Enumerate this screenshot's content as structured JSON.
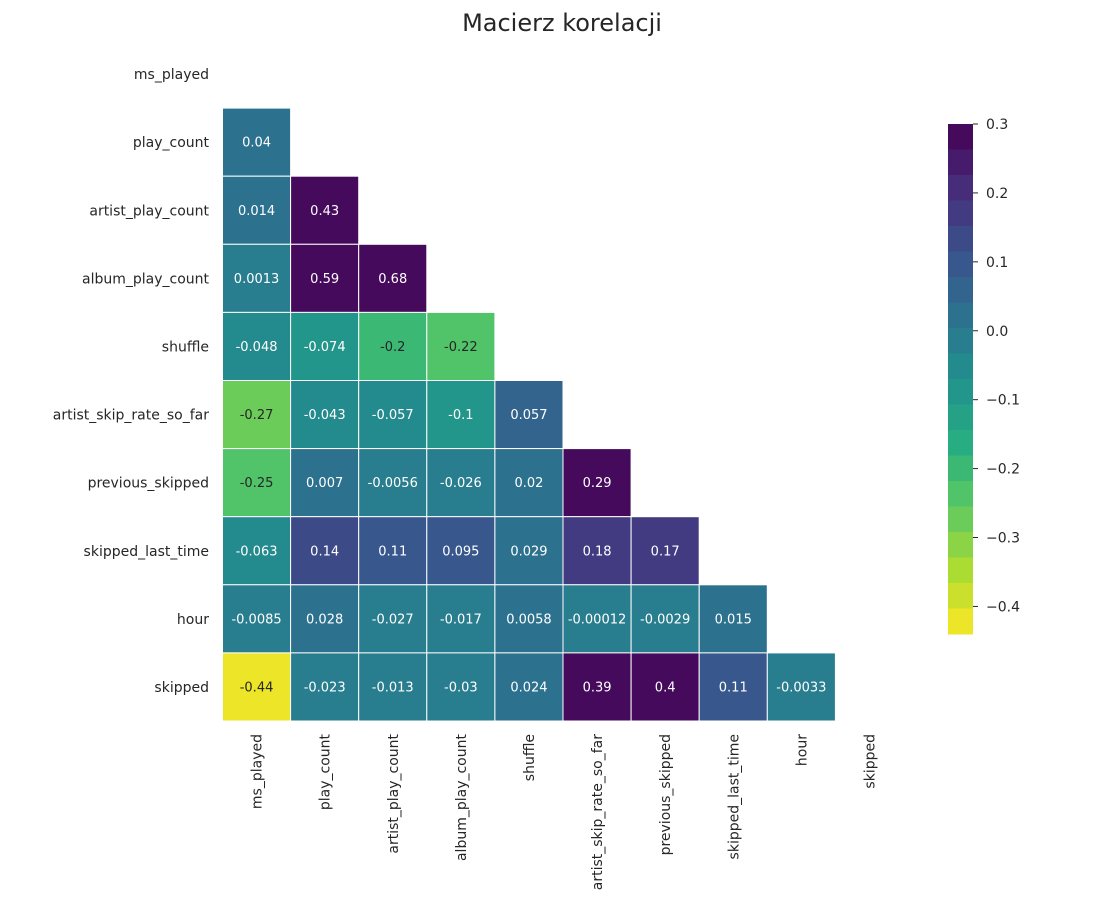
{
  "chart_data": {
    "type": "heatmap",
    "title": "Macierz korelacji",
    "xlabel": "",
    "ylabel": "",
    "mask": "upper-triangle-including-diagonal",
    "grid": false,
    "legend": "right",
    "colormap": "viridis_r (20 discrete steps)",
    "row_labels": [
      "ms_played",
      "play_count",
      "artist_play_count",
      "album_play_count",
      "shuffle",
      "artist_skip_rate_so_far",
      "previous_skipped",
      "skipped_last_time",
      "hour",
      "skipped"
    ],
    "col_labels": [
      "ms_played",
      "play_count",
      "artist_play_count",
      "album_play_count",
      "shuffle",
      "artist_skip_rate_so_far",
      "previous_skipped",
      "skipped_last_time",
      "hour",
      "skipped"
    ],
    "values": [
      [
        null,
        null,
        null,
        null,
        null,
        null,
        null,
        null,
        null,
        null
      ],
      [
        0.04,
        null,
        null,
        null,
        null,
        null,
        null,
        null,
        null,
        null
      ],
      [
        0.014,
        0.43,
        null,
        null,
        null,
        null,
        null,
        null,
        null,
        null
      ],
      [
        0.0013,
        0.59,
        0.68,
        null,
        null,
        null,
        null,
        null,
        null,
        null
      ],
      [
        -0.048,
        -0.074,
        -0.2,
        -0.22,
        null,
        null,
        null,
        null,
        null,
        null
      ],
      [
        -0.27,
        -0.043,
        -0.057,
        -0.1,
        0.057,
        null,
        null,
        null,
        null,
        null
      ],
      [
        -0.25,
        0.007,
        -0.0056,
        -0.026,
        0.02,
        0.29,
        null,
        null,
        null,
        null
      ],
      [
        -0.063,
        0.14,
        0.11,
        0.095,
        0.029,
        0.18,
        0.17,
        null,
        null,
        null
      ],
      [
        -0.0085,
        0.028,
        -0.027,
        -0.017,
        0.0058,
        -0.00012,
        -0.0029,
        0.015,
        null,
        null
      ],
      [
        -0.44,
        -0.023,
        -0.013,
        -0.03,
        0.024,
        0.39,
        0.4,
        0.11,
        -0.0033,
        null
      ]
    ],
    "cell_labels": [
      [
        null,
        null,
        null,
        null,
        null,
        null,
        null,
        null,
        null,
        null
      ],
      [
        "0.04",
        null,
        null,
        null,
        null,
        null,
        null,
        null,
        null,
        null
      ],
      [
        "0.014",
        "0.43",
        null,
        null,
        null,
        null,
        null,
        null,
        null,
        null
      ],
      [
        "0.0013",
        "0.59",
        "0.68",
        null,
        null,
        null,
        null,
        null,
        null,
        null
      ],
      [
        "-0.048",
        "-0.074",
        "-0.2",
        "-0.22",
        null,
        null,
        null,
        null,
        null,
        null
      ],
      [
        "-0.27",
        "-0.043",
        "-0.057",
        "-0.1",
        "0.057",
        null,
        null,
        null,
        null,
        null
      ],
      [
        "-0.25",
        "0.007",
        "-0.0056",
        "-0.026",
        "0.02",
        "0.29",
        null,
        null,
        null,
        null
      ],
      [
        "-0.063",
        "0.14",
        "0.11",
        "0.095",
        "0.029",
        "0.18",
        "0.17",
        null,
        null,
        null
      ],
      [
        "-0.0085",
        "0.028",
        "-0.027",
        "-0.017",
        "0.0058",
        "-0.00012",
        "-0.0029",
        "0.015",
        null,
        null
      ],
      [
        "-0.44",
        "-0.023",
        "-0.013",
        "-0.03",
        "0.024",
        "0.39",
        "0.4",
        "0.11",
        "-0.0033",
        null
      ]
    ],
    "colorbar": {
      "range": [
        -0.44,
        0.3
      ],
      "ticks": [
        0.3,
        0.2,
        0.1,
        0.0,
        -0.1,
        -0.2,
        -0.3,
        -0.4
      ],
      "tick_labels": [
        "0.3",
        "0.2",
        "0.1",
        "0.0",
        "−0.1",
        "−0.2",
        "−0.3",
        "−0.4"
      ],
      "steps": 20
    },
    "colors": {
      "palette_high_to_low": [
        "#440154",
        "#472c7a",
        "#3b518b",
        "#2c718e",
        "#21908d",
        "#27ad81",
        "#5cc863",
        "#aadc32",
        "#fde725"
      ],
      "cell_border": "#ffffff",
      "text_light": "#ffffff",
      "text_dark": "#262626"
    }
  }
}
